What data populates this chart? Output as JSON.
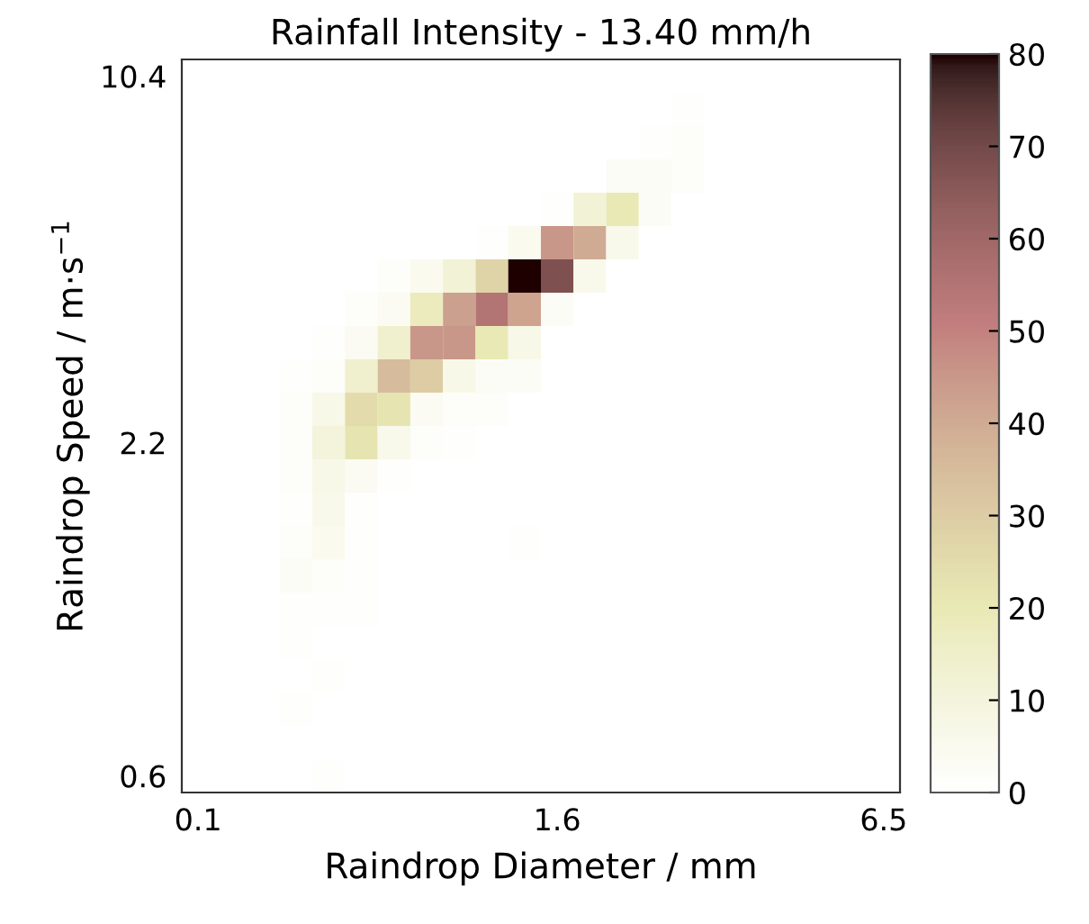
{
  "chart_data": {
    "type": "heatmap",
    "title": "Rainfall Intensity - 13.40 mm/h",
    "xlabel": "Raindrop Diameter / mm",
    "ylabel": "Raindrop Speed / m·s$^{−1}$",
    "categories": [
      "0.1",
      null,
      null,
      null,
      null,
      null,
      null,
      null,
      null,
      null,
      null,
      "1.6",
      null,
      null,
      null,
      null,
      null,
      null,
      null,
      null,
      null,
      "6.5"
    ],
    "y_categories": [
      "10.4",
      null,
      null,
      null,
      null,
      null,
      null,
      null,
      null,
      null,
      null,
      "2.2",
      null,
      null,
      null,
      null,
      null,
      null,
      null,
      null,
      null,
      "0.6"
    ],
    "cells": [
      [
        0,
        0,
        0,
        0,
        0,
        0,
        0,
        0,
        0,
        0,
        0,
        0,
        0,
        0,
        0,
        0,
        0,
        0,
        0,
        0,
        0,
        0
      ],
      [
        0,
        0,
        0,
        0,
        0,
        0,
        0,
        0,
        0,
        0,
        0,
        0,
        0,
        0,
        0,
        1,
        0,
        0,
        0,
        0,
        0,
        0
      ],
      [
        0,
        0,
        0,
        0,
        0,
        0,
        0,
        0,
        0,
        0,
        0,
        0,
        0,
        0,
        1,
        2,
        0,
        0,
        0,
        0,
        0,
        0
      ],
      [
        0,
        0,
        0,
        0,
        0,
        0,
        0,
        0,
        0,
        0,
        0,
        0,
        0,
        3,
        3,
        2,
        0,
        0,
        0,
        0,
        0,
        0
      ],
      [
        0,
        0,
        0,
        0,
        0,
        0,
        0,
        0,
        0,
        0,
        0,
        1,
        12,
        20,
        3,
        0,
        0,
        0,
        0,
        0,
        0,
        0
      ],
      [
        0,
        0,
        0,
        0,
        0,
        0,
        0,
        0,
        0,
        1,
        5,
        45,
        40,
        6,
        0,
        0,
        0,
        0,
        0,
        0,
        0,
        0
      ],
      [
        0,
        0,
        0,
        0,
        0,
        0,
        2,
        5,
        12,
        28,
        80,
        68,
        6,
        0,
        0,
        0,
        0,
        0,
        0,
        0,
        0,
        0
      ],
      [
        0,
        0,
        0,
        0,
        0,
        2,
        4,
        18,
        43,
        55,
        42,
        3,
        0,
        0,
        0,
        0,
        0,
        0,
        0,
        0,
        0,
        0
      ],
      [
        0,
        0,
        0,
        0,
        1,
        4,
        14,
        45,
        45,
        20,
        7,
        0,
        0,
        0,
        0,
        0,
        0,
        0,
        0,
        0,
        0,
        0
      ],
      [
        0,
        0,
        0,
        1,
        2,
        14,
        35,
        30,
        7,
        3,
        3,
        0,
        0,
        0,
        0,
        0,
        0,
        0,
        0,
        0,
        0,
        0
      ],
      [
        0,
        0,
        0,
        2,
        7,
        25,
        22,
        4,
        2,
        2,
        0,
        0,
        0,
        0,
        0,
        0,
        0,
        0,
        0,
        0,
        0,
        0
      ],
      [
        0,
        0,
        0,
        2,
        10,
        22,
        6,
        2,
        1,
        0,
        0,
        0,
        0,
        0,
        0,
        0,
        0,
        0,
        0,
        0,
        0,
        0
      ],
      [
        0,
        0,
        0,
        2,
        7,
        4,
        1,
        0,
        0,
        0,
        0,
        0,
        0,
        0,
        0,
        0,
        0,
        0,
        0,
        0,
        0,
        0
      ],
      [
        0,
        0,
        0,
        1,
        6,
        1,
        0,
        0,
        0,
        0,
        0,
        0,
        0,
        0,
        0,
        0,
        0,
        0,
        0,
        0,
        0,
        0
      ],
      [
        0,
        0,
        0,
        2,
        5,
        1,
        0,
        0,
        0,
        0,
        1,
        0,
        0,
        0,
        0,
        0,
        0,
        0,
        0,
        0,
        0,
        0
      ],
      [
        0,
        0,
        0,
        3,
        2,
        1,
        0,
        0,
        0,
        0,
        0,
        0,
        0,
        0,
        0,
        0,
        0,
        0,
        0,
        0,
        0,
        0
      ],
      [
        0,
        0,
        0,
        1,
        1,
        1,
        0,
        0,
        0,
        0,
        0,
        0,
        0,
        0,
        0,
        0,
        0,
        0,
        0,
        0,
        0,
        0
      ],
      [
        0,
        0,
        0,
        1,
        0,
        0,
        0,
        0,
        0,
        0,
        0,
        0,
        0,
        0,
        0,
        0,
        0,
        0,
        0,
        0,
        0,
        0
      ],
      [
        0,
        0,
        0,
        0,
        1,
        0,
        0,
        0,
        0,
        0,
        0,
        0,
        0,
        0,
        0,
        0,
        0,
        0,
        0,
        0,
        0,
        0
      ],
      [
        0,
        0,
        0,
        1,
        0,
        0,
        0,
        0,
        0,
        0,
        0,
        0,
        0,
        0,
        0,
        0,
        0,
        0,
        0,
        0,
        0,
        0
      ],
      [
        0,
        0,
        0,
        0,
        0,
        0,
        0,
        0,
        0,
        0,
        0,
        0,
        0,
        0,
        0,
        0,
        0,
        0,
        0,
        0,
        0,
        0
      ],
      [
        0,
        0,
        0,
        0,
        1,
        0,
        0,
        0,
        0,
        0,
        0,
        0,
        0,
        0,
        0,
        0,
        0,
        0,
        0,
        0,
        0,
        0
      ]
    ],
    "clim": [
      0,
      80
    ],
    "cticks": [
      0,
      10,
      20,
      30,
      40,
      50,
      60,
      70,
      80
    ]
  }
}
